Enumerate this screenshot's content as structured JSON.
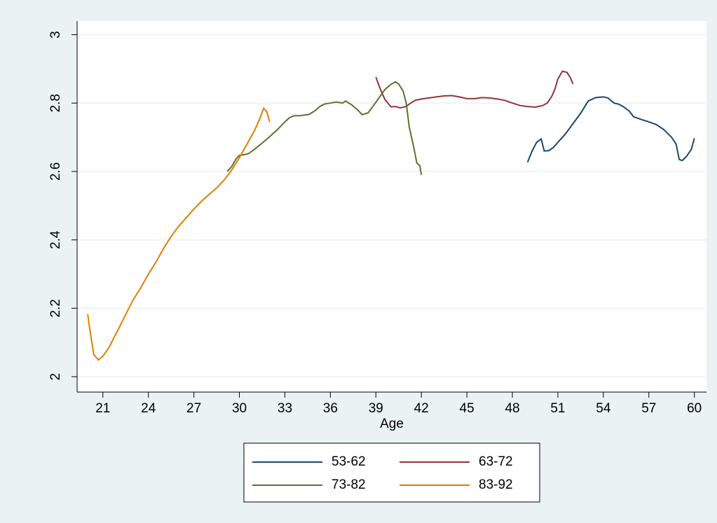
{
  "chart_data": {
    "type": "line",
    "x_label": "Age",
    "xlim": [
      19.3,
      60.8
    ],
    "xticks": [
      21,
      24,
      27,
      30,
      33,
      36,
      39,
      42,
      45,
      48,
      51,
      54,
      57,
      60
    ],
    "ylim": [
      1.955,
      3.04
    ],
    "yticks": [
      2,
      2.2,
      2.4,
      2.6,
      2.8,
      3
    ],
    "grid": true,
    "legend": "bottom",
    "series": [
      {
        "name": "53-62",
        "color": "#1a476f",
        "x": [
          49,
          49.3,
          49.6,
          49.9,
          50.1,
          50.4,
          50.7,
          51,
          51.5,
          52,
          52.5,
          53,
          53.5,
          54,
          54.3,
          54.7,
          55,
          55.3,
          55.7,
          56,
          56.5,
          57,
          57.5,
          58,
          58.5,
          58.8,
          59,
          59.2,
          59.5,
          59.8,
          60
        ],
        "values": [
          2.627,
          2.66,
          2.685,
          2.695,
          2.66,
          2.661,
          2.67,
          2.685,
          2.71,
          2.74,
          2.77,
          2.806,
          2.816,
          2.818,
          2.815,
          2.8,
          2.797,
          2.79,
          2.777,
          2.76,
          2.752,
          2.745,
          2.737,
          2.722,
          2.7,
          2.68,
          2.635,
          2.632,
          2.645,
          2.665,
          2.697
        ]
      },
      {
        "name": "63-72",
        "color": "#90353b",
        "x": [
          39,
          39.3,
          39.6,
          40,
          40.3,
          40.6,
          41,
          41.3,
          41.6,
          42,
          42.5,
          43,
          43.5,
          44,
          44.5,
          45,
          45.5,
          46,
          46.5,
          47,
          47.5,
          48,
          48.5,
          49,
          49.5,
          50,
          50.3,
          50.6,
          50.8,
          51,
          51.3,
          51.6,
          51.8,
          52
        ],
        "values": [
          2.876,
          2.84,
          2.81,
          2.789,
          2.79,
          2.786,
          2.79,
          2.8,
          2.808,
          2.812,
          2.815,
          2.818,
          2.821,
          2.822,
          2.818,
          2.813,
          2.813,
          2.816,
          2.815,
          2.812,
          2.808,
          2.8,
          2.793,
          2.79,
          2.788,
          2.793,
          2.8,
          2.82,
          2.84,
          2.87,
          2.893,
          2.89,
          2.876,
          2.856
        ]
      },
      {
        "name": "73-82",
        "color": "#55752f",
        "x": [
          29.2,
          29.5,
          29.8,
          30,
          30.3,
          30.6,
          31,
          31.5,
          32,
          32.5,
          33,
          33.3,
          33.6,
          34,
          34.3,
          34.6,
          35,
          35.3,
          35.6,
          36,
          36.4,
          36.8,
          37,
          37.4,
          37.8,
          38.1,
          38.5,
          38.8,
          39.2,
          39.6,
          40,
          40.3,
          40.5,
          40.8,
          41,
          41.2,
          41.5,
          41.7,
          41.9,
          42
        ],
        "values": [
          2.6,
          2.615,
          2.638,
          2.647,
          2.649,
          2.652,
          2.665,
          2.683,
          2.702,
          2.722,
          2.745,
          2.757,
          2.763,
          2.763,
          2.765,
          2.767,
          2.778,
          2.79,
          2.797,
          2.8,
          2.803,
          2.8,
          2.806,
          2.795,
          2.78,
          2.766,
          2.772,
          2.79,
          2.815,
          2.84,
          2.855,
          2.862,
          2.856,
          2.835,
          2.8,
          2.73,
          2.67,
          2.625,
          2.617,
          2.59
        ]
      },
      {
        "name": "83-92",
        "color": "#e37e00",
        "x": [
          20,
          20.2,
          20.4,
          20.7,
          21,
          21.4,
          21.8,
          22.2,
          22.6,
          23,
          23.5,
          24,
          24.5,
          25,
          25.5,
          26,
          26.5,
          27,
          27.5,
          28,
          28.5,
          29,
          29.5,
          30,
          30.5,
          31,
          31.3,
          31.6,
          31.8,
          32
        ],
        "values": [
          2.183,
          2.12,
          2.065,
          2.049,
          2.06,
          2.085,
          2.12,
          2.155,
          2.19,
          2.225,
          2.26,
          2.3,
          2.335,
          2.375,
          2.41,
          2.44,
          2.465,
          2.49,
          2.513,
          2.533,
          2.552,
          2.575,
          2.605,
          2.64,
          2.68,
          2.72,
          2.75,
          2.785,
          2.775,
          2.745
        ]
      }
    ]
  }
}
